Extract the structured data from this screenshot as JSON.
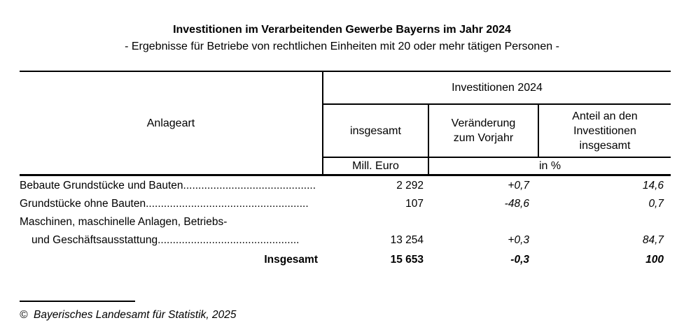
{
  "title": "Investitionen im Verarbeitenden Gewerbe Bayerns im Jahr 2024",
  "subtitle": "- Ergebnisse für Betriebe von rechtlichen Einheiten mit 20 oder mehr tätigen Personen -",
  "table": {
    "row_header": "Anlageart",
    "group_header": "Investitionen 2024",
    "col_insgesamt": "insgesamt",
    "col_veraenderung": "Veränderung\nzum Vorjahr",
    "col_anteil": "Anteil an den\nInvestitionen\ninsgesamt",
    "unit_mill_euro": "Mill. Euro",
    "unit_in_percent": "in %",
    "rows": [
      {
        "label_lines": [
          {
            "text": "Bebaute Grundstücke und Bauten............................................",
            "indent": false
          }
        ],
        "insgesamt": "2 292",
        "veraenderung": "+0,7",
        "anteil": "14,6",
        "total": false
      },
      {
        "label_lines": [
          {
            "text": "Grundstücke ohne Bauten......................................................",
            "indent": false
          }
        ],
        "insgesamt": "107",
        "veraenderung": "-48,6",
        "anteil": "0,7",
        "total": false
      },
      {
        "label_lines": [
          {
            "text": "Maschinen, maschinelle Anlagen, Betriebs-",
            "indent": false
          },
          {
            "text": "und Geschäftsausstattung...............................................",
            "indent": true
          }
        ],
        "insgesamt": "13 254",
        "veraenderung": "+0,3",
        "anteil": "84,7",
        "total": false
      },
      {
        "label_lines": [
          {
            "text": "Insgesamt",
            "indent": false
          }
        ],
        "insgesamt": "15 653",
        "veraenderung": "-0,3",
        "anteil": "100",
        "total": true
      }
    ]
  },
  "footer": {
    "copyright": "©  Bayerisches Landesamt für Statistik, 2025"
  }
}
